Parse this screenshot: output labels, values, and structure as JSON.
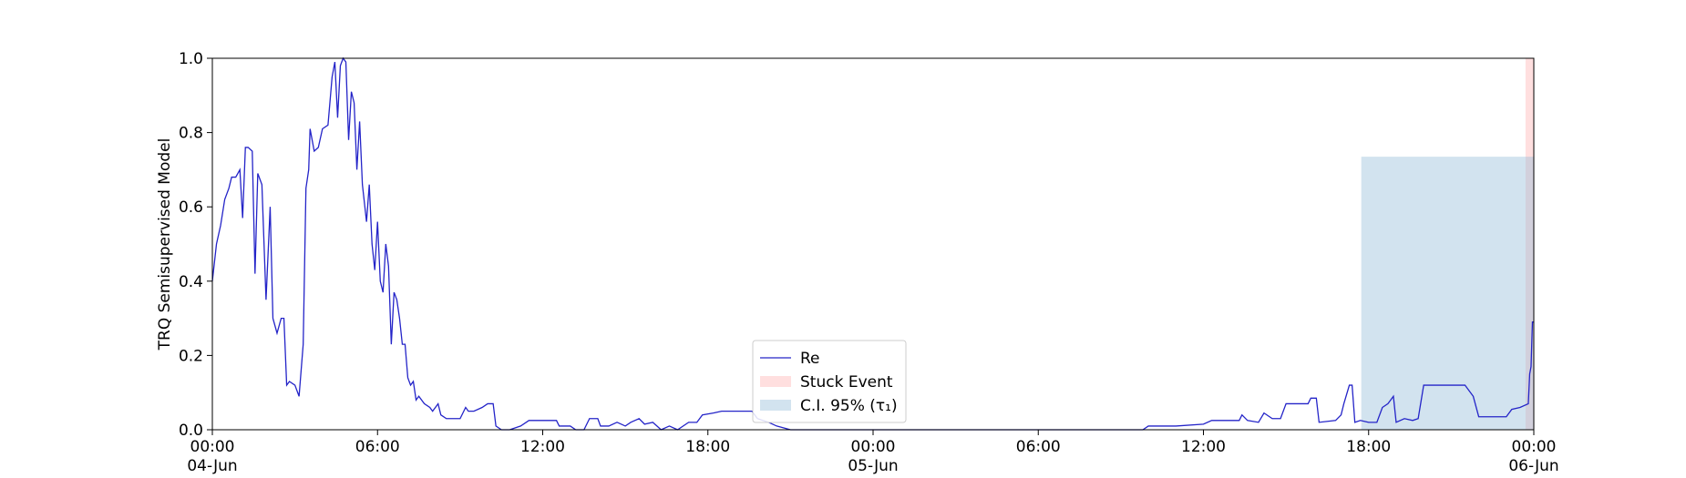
{
  "chart_data": {
    "type": "line",
    "ylabel": "TRQ Semisupervised Model",
    "x": [
      "1900-06-04 00:00",
      "1900-06-04 00:09",
      "1900-06-04 00:18",
      "1900-06-04 00:27",
      "1900-06-04 00:36",
      "1900-06-04 00:42",
      "1900-06-04 00:51",
      "1900-06-04 01:00",
      "1900-06-04 01:06",
      "1900-06-04 01:12",
      "1900-06-04 01:18",
      "1900-06-04 01:27",
      "1900-06-04 01:33",
      "1900-06-04 01:39",
      "1900-06-04 01:48",
      "1900-06-04 01:57",
      "1900-06-04 02:06",
      "1900-06-04 02:12",
      "1900-06-04 02:21",
      "1900-06-04 02:30",
      "1900-06-04 02:36",
      "1900-06-04 02:42",
      "1900-06-04 02:48",
      "1900-06-04 03:00",
      "1900-06-04 03:09",
      "1900-06-04 03:18",
      "1900-06-04 03:24",
      "1900-06-04 03:30",
      "1900-06-04 03:33",
      "1900-06-04 03:42",
      "1900-06-04 03:51",
      "1900-06-04 04:00",
      "1900-06-04 04:12",
      "1900-06-04 04:21",
      "1900-06-04 04:27",
      "1900-06-04 04:33",
      "1900-06-04 04:39",
      "1900-06-04 04:45",
      "1900-06-04 04:51",
      "1900-06-04 04:57",
      "1900-06-04 05:03",
      "1900-06-04 05:09",
      "1900-06-04 05:15",
      "1900-06-04 05:21",
      "1900-06-04 05:27",
      "1900-06-04 05:36",
      "1900-06-04 05:42",
      "1900-06-04 05:48",
      "1900-06-04 05:54",
      "1900-06-04 06:00",
      "1900-06-04 06:06",
      "1900-06-04 06:12",
      "1900-06-04 06:18",
      "1900-06-04 06:24",
      "1900-06-04 06:30",
      "1900-06-04 06:36",
      "1900-06-04 06:42",
      "1900-06-04 06:48",
      "1900-06-04 06:54",
      "1900-06-04 07:00",
      "1900-06-04 07:06",
      "1900-06-04 07:12",
      "1900-06-04 07:18",
      "1900-06-04 07:24",
      "1900-06-04 07:30",
      "1900-06-04 07:42",
      "1900-06-04 07:54",
      "1900-06-04 08:00",
      "1900-06-04 08:12",
      "1900-06-04 08:18",
      "1900-06-04 08:30",
      "1900-06-04 08:42",
      "1900-06-04 09:00",
      "1900-06-04 09:12",
      "1900-06-04 09:18",
      "1900-06-04 09:30",
      "1900-06-04 09:48",
      "1900-06-04 10:00",
      "1900-06-04 10:12",
      "1900-06-04 10:18",
      "1900-06-04 10:30",
      "1900-06-04 10:48",
      "1900-06-04 11:12",
      "1900-06-04 11:30",
      "1900-06-04 12:30",
      "1900-06-04 12:36",
      "1900-06-04 13:00",
      "1900-06-04 13:12",
      "1900-06-04 13:30",
      "1900-06-04 13:42",
      "1900-06-04 14:00",
      "1900-06-04 14:06",
      "1900-06-04 14:24",
      "1900-06-04 14:42",
      "1900-06-04 15:00",
      "1900-06-04 15:12",
      "1900-06-04 15:30",
      "1900-06-04 15:42",
      "1900-06-04 16:00",
      "1900-06-04 16:18",
      "1900-06-04 16:36",
      "1900-06-04 16:54",
      "1900-06-04 17:18",
      "1900-06-04 17:36",
      "1900-06-04 17:48",
      "1900-06-04 18:12",
      "1900-06-04 18:30",
      "1900-06-04 19:36",
      "1900-06-04 19:48",
      "1900-06-04 20:12",
      "1900-06-04 20:30",
      "1900-06-04 21:00",
      "1900-06-05 09:48",
      "1900-06-05 10:00",
      "1900-06-05 11:00",
      "1900-06-05 12:00",
      "1900-06-05 12:18",
      "1900-06-05 13:18",
      "1900-06-05 13:24",
      "1900-06-05 13:36",
      "1900-06-05 14:00",
      "1900-06-05 14:12",
      "1900-06-05 14:30",
      "1900-06-05 14:48",
      "1900-06-05 15:00",
      "1900-06-05 15:48",
      "1900-06-05 15:54",
      "1900-06-05 16:06",
      "1900-06-05 16:12",
      "1900-06-05 16:48",
      "1900-06-05 17:00",
      "1900-06-05 17:06",
      "1900-06-05 17:18",
      "1900-06-05 17:24",
      "1900-06-05 17:30",
      "1900-06-05 17:42",
      "1900-06-05 18:00",
      "1900-06-05 18:18",
      "1900-06-05 18:30",
      "1900-06-05 18:42",
      "1900-06-05 18:54",
      "1900-06-05 19:00",
      "1900-06-05 19:18",
      "1900-06-05 19:36",
      "1900-06-05 19:48",
      "1900-06-05 20:00",
      "1900-06-05 21:30",
      "1900-06-05 21:48",
      "1900-06-05 22:00",
      "1900-06-05 23:00",
      "1900-06-05 23:12",
      "1900-06-05 23:30",
      "1900-06-05 23:48",
      "1900-06-05 23:51",
      "1900-06-05 23:54",
      "1900-06-05 23:57",
      "1900-06-06 00:00"
    ],
    "series": [
      {
        "name": "Re",
        "color": "#2424c8",
        "values": [
          0.4,
          0.5,
          0.55,
          0.62,
          0.65,
          0.68,
          0.68,
          0.7,
          0.57,
          0.76,
          0.76,
          0.75,
          0.42,
          0.69,
          0.66,
          0.35,
          0.6,
          0.3,
          0.26,
          0.3,
          0.3,
          0.12,
          0.13,
          0.12,
          0.09,
          0.23,
          0.65,
          0.7,
          0.81,
          0.75,
          0.76,
          0.81,
          0.82,
          0.95,
          0.99,
          0.84,
          0.98,
          1.0,
          0.99,
          0.78,
          0.91,
          0.88,
          0.7,
          0.83,
          0.66,
          0.56,
          0.66,
          0.5,
          0.43,
          0.56,
          0.4,
          0.37,
          0.5,
          0.44,
          0.23,
          0.37,
          0.35,
          0.3,
          0.23,
          0.23,
          0.14,
          0.12,
          0.13,
          0.08,
          0.09,
          0.07,
          0.06,
          0.05,
          0.07,
          0.04,
          0.03,
          0.03,
          0.03,
          0.06,
          0.05,
          0.05,
          0.06,
          0.07,
          0.07,
          0.01,
          0,
          0,
          0.01,
          0.025,
          0.025,
          0.01,
          0.01,
          0,
          0,
          0.03,
          0.03,
          0.01,
          0.01,
          0.02,
          0.01,
          0.02,
          0.03,
          0.015,
          0.02,
          0,
          0.01,
          0,
          0.02,
          0.02,
          0.04,
          0.045,
          0.05,
          0.05,
          0.03,
          0.02,
          0.01,
          0,
          0,
          0.01,
          0.01,
          0.015,
          0.025,
          0.025,
          0.04,
          0.025,
          0.02,
          0.045,
          0.03,
          0.03,
          0.07,
          0.07,
          0.085,
          0.085,
          0.02,
          0.025,
          0.04,
          0.07,
          0.12,
          0.12,
          0.02,
          0.025,
          0.02,
          0.02,
          0.06,
          0.07,
          0.09,
          0.02,
          0.03,
          0.025,
          0.03,
          0.12,
          0.12,
          0.09,
          0.035,
          0.035,
          0.055,
          0.06,
          0.07,
          0.15,
          0.17,
          0.29,
          0.29
        ]
      }
    ],
    "spans": [
      {
        "name": "Stuck Event",
        "color": "#ffb0b0",
        "x": [
          "1900-06-05 23:42",
          "1900-06-06 00:00"
        ],
        "y": [
          0,
          1.0
        ]
      },
      {
        "name": "C.I. 95% (τ₁)",
        "color": "#8fb8d8",
        "x": [
          "1900-06-05 17:44",
          "1900-06-06 00:00"
        ],
        "y": [
          0,
          0.735
        ]
      }
    ],
    "xlim": [
      "1900-06-04 00:00",
      "1900-06-06 00:00"
    ],
    "xticks": [
      {
        "value": "1900-06-04 00:00",
        "label": "00:00\n04-Jun\n1900"
      },
      {
        "value": "1900-06-04 06:00",
        "label": "06:00"
      },
      {
        "value": "1900-06-04 12:00",
        "label": "12:00"
      },
      {
        "value": "1900-06-04 18:00",
        "label": "18:00"
      },
      {
        "value": "1900-06-05 00:00",
        "label": "00:00\n05-Jun"
      },
      {
        "value": "1900-06-05 06:00",
        "label": "06:00"
      },
      {
        "value": "1900-06-05 12:00",
        "label": "12:00"
      },
      {
        "value": "1900-06-05 18:00",
        "label": "18:00"
      },
      {
        "value": "1900-06-06 00:00",
        "label": "00:00\n06-Jun"
      }
    ],
    "ylim": [
      0,
      1
    ],
    "yticks": [
      {
        "value": 0,
        "label": "0.0"
      },
      0.2,
      0.4,
      0.6,
      0.8,
      {
        "value": 1,
        "label": "1.0"
      }
    ],
    "legend": "lower center"
  }
}
